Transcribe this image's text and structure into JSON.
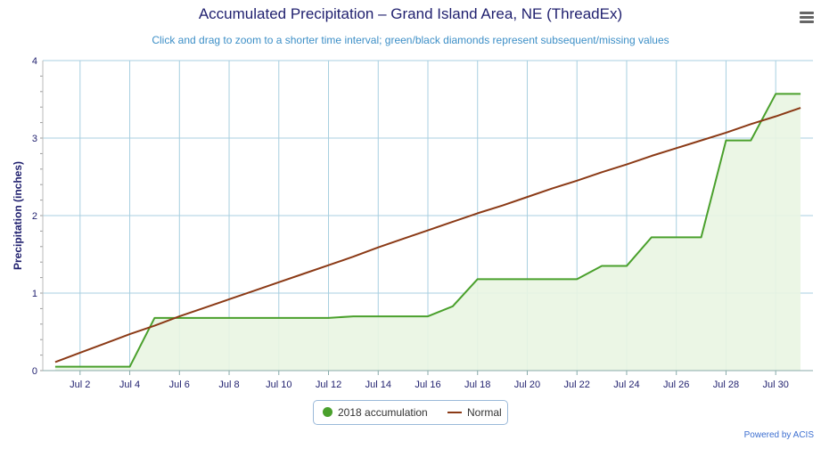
{
  "title": "Accumulated Precipitation – Grand Island Area, NE (ThreadEx)",
  "subtitle": "Click and drag to zoom to a shorter time interval; green/black diamonds represent subsequent/missing values",
  "credits": "Powered by ACIS",
  "menu_icon": "hamburger-menu-icon",
  "colors": {
    "accumulation": "#4aa02c",
    "accumulation_fill": "#e9f5e2",
    "normal": "#8b3a16",
    "grid": "#a8cfe0",
    "axis_text": "#1f1f6e",
    "ylabel_color": "#1f1f6e"
  },
  "chart_data": {
    "type": "line",
    "title": "Accumulated Precipitation – Grand Island Area, NE (ThreadEx)",
    "ylabel": "Precipitation (inches)",
    "xlabel": "",
    "ylim": [
      0,
      4
    ],
    "yticks": [
      0,
      1,
      2,
      3,
      4
    ],
    "x": [
      "Jul 1",
      "Jul 2",
      "Jul 3",
      "Jul 4",
      "Jul 5",
      "Jul 6",
      "Jul 7",
      "Jul 8",
      "Jul 9",
      "Jul 10",
      "Jul 11",
      "Jul 12",
      "Jul 13",
      "Jul 14",
      "Jul 15",
      "Jul 16",
      "Jul 17",
      "Jul 18",
      "Jul 19",
      "Jul 20",
      "Jul 21",
      "Jul 22",
      "Jul 23",
      "Jul 24",
      "Jul 25",
      "Jul 26",
      "Jul 27",
      "Jul 28",
      "Jul 29",
      "Jul 30",
      "Jul 31"
    ],
    "xtick_labels": [
      "Jul 2",
      "Jul 4",
      "Jul 6",
      "Jul 8",
      "Jul 10",
      "Jul 12",
      "Jul 14",
      "Jul 16",
      "Jul 18",
      "Jul 20",
      "Jul 22",
      "Jul 24",
      "Jul 26",
      "Jul 28",
      "Jul 30"
    ],
    "grid": true,
    "legend_position": "bottom-center",
    "series": [
      {
        "name": "2018 accumulation",
        "style": "area",
        "values": [
          0.05,
          0.05,
          0.05,
          0.05,
          0.68,
          0.68,
          0.68,
          0.68,
          0.68,
          0.68,
          0.68,
          0.68,
          0.7,
          0.7,
          0.7,
          0.7,
          0.83,
          1.18,
          1.18,
          1.18,
          1.18,
          1.18,
          1.35,
          1.35,
          1.72,
          1.72,
          1.72,
          2.97,
          2.97,
          3.57,
          3.57
        ]
      },
      {
        "name": "Normal",
        "style": "line",
        "values": [
          0.11,
          0.23,
          0.35,
          0.47,
          0.58,
          0.7,
          0.81,
          0.92,
          1.03,
          1.14,
          1.25,
          1.36,
          1.47,
          1.59,
          1.7,
          1.81,
          1.92,
          2.03,
          2.13,
          2.24,
          2.35,
          2.45,
          2.56,
          2.66,
          2.77,
          2.87,
          2.97,
          3.07,
          3.18,
          3.28,
          3.39
        ]
      }
    ]
  }
}
